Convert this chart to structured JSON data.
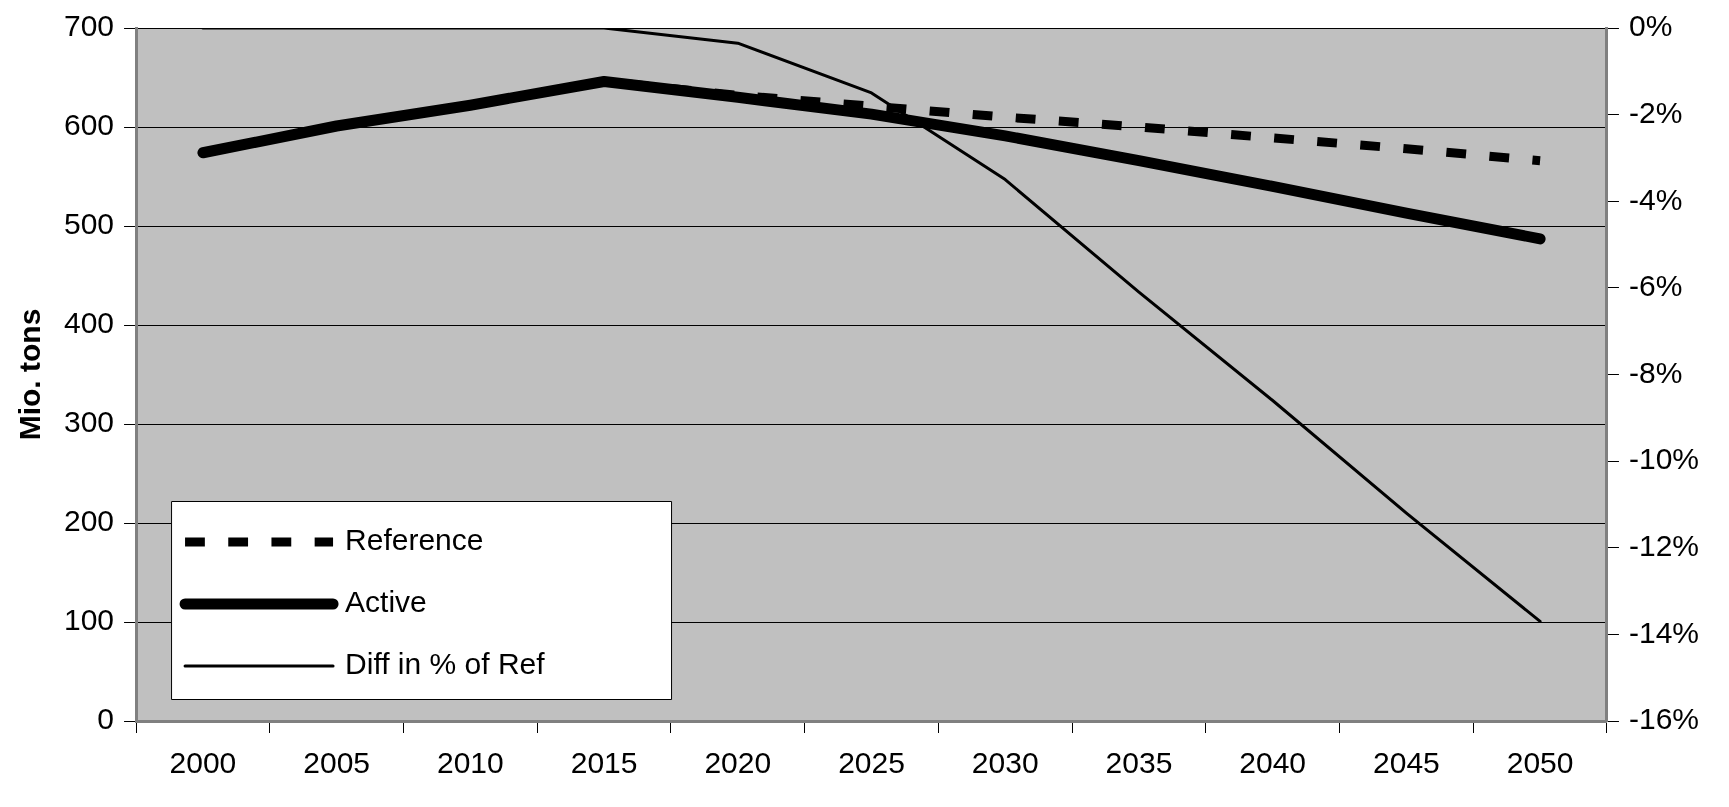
{
  "chart_data": {
    "type": "line",
    "ylabel": "Mio. tons",
    "categories": [
      "2000",
      "2005",
      "2010",
      "2015",
      "2020",
      "2025",
      "2030",
      "2035",
      "2040",
      "2045",
      "2050"
    ],
    "series": [
      {
        "name": "Reference",
        "color": "#000000",
        "line_style": "dashed",
        "values": [
          574,
          601,
          622,
          646,
          632,
          621,
          610,
          600,
          589,
          578,
          566
        ]
      },
      {
        "name": "Active",
        "color": "#000000",
        "line_style": "solid",
        "values": [
          574,
          601,
          622,
          646,
          630,
          613,
          591,
          566,
          540,
          513,
          487
        ]
      },
      {
        "name": "Diff in % of Ref",
        "color": "#000000",
        "line_style": "solid",
        "axis": "y2",
        "values": [
          0,
          0,
          0,
          0,
          -0.35,
          -1.5,
          -3.5,
          -6.1,
          -8.6,
          -11.2,
          -13.7
        ]
      }
    ],
    "ylim": [
      0,
      700
    ],
    "yticks": [
      0,
      100,
      200,
      300,
      400,
      500,
      600,
      700
    ],
    "y2lim": [
      -16,
      0
    ],
    "y2ticks": [
      {
        "value": -16,
        "label": "-16%"
      },
      {
        "value": -14,
        "label": "-14%"
      },
      {
        "value": -12,
        "label": "-12%"
      },
      {
        "value": -10,
        "label": "-10%"
      },
      {
        "value": -8,
        "label": "-8%"
      },
      {
        "value": -6,
        "label": "-6%"
      },
      {
        "value": -4,
        "label": "-4%"
      },
      {
        "value": -2,
        "label": "-2%"
      },
      {
        "value": 0,
        "label": "0%"
      }
    ],
    "grid": "y",
    "legend": "bottom left",
    "marker": "none"
  }
}
